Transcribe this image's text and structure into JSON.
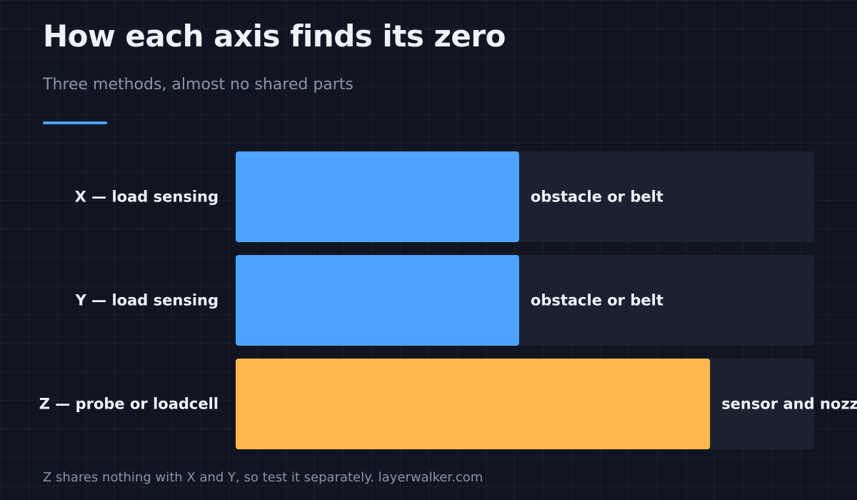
{
  "header": {
    "title": "How each axis finds its zero",
    "subtitle": "Three methods, almost no shared parts"
  },
  "footer": {
    "note": "Z shares nothing with X and Y, so test it separately. layerwalker.com"
  },
  "colors": {
    "accent": "#4da3ff",
    "track": "#1b2133",
    "background": "#111522",
    "text": "#eef2fb",
    "muted": "#8b93a6"
  },
  "chart_data": {
    "type": "bar",
    "orientation": "horizontal",
    "categories": [
      "X — load sensing",
      "Y — load sensing",
      "Z — probe or loadcell"
    ],
    "values": [
      0.49,
      0.49,
      0.82
    ],
    "bar_labels": [
      "obstacle or belt",
      "obstacle or belt",
      "sensor and nozzle"
    ],
    "bar_colors": [
      "#4da3ff",
      "#4da3ff",
      "#ffb84d"
    ],
    "xlim": [
      0,
      1
    ],
    "grid": false,
    "legend": "none"
  }
}
